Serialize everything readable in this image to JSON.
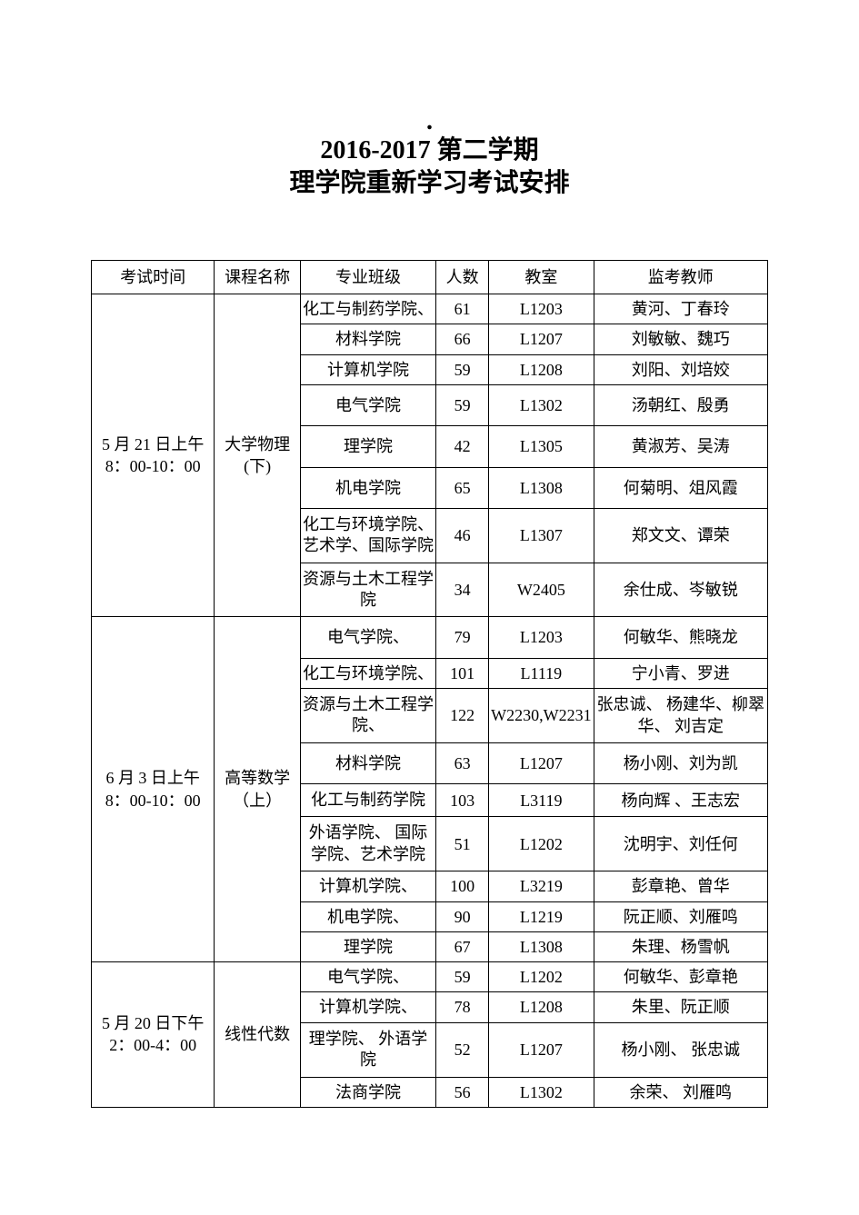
{
  "title_line1": "2016-2017 第二学期",
  "title_line2": "理学院重新学习考试安排",
  "header": {
    "time": "考试时间",
    "course": "课程名称",
    "major": "专业班级",
    "count": "人数",
    "room": "教室",
    "teacher": "监考教师"
  },
  "block1": {
    "time_l1": "5 月 21 日上午",
    "time_l2": "8：00-10：00",
    "course_l1": "大学物理",
    "course_l2": "(下)",
    "rows": [
      {
        "major": "化工与制药学院、",
        "count": "61",
        "room": "L1203",
        "teacher": "黄河、丁春玲"
      },
      {
        "major": "材料学院",
        "count": "66",
        "room": "L1207",
        "teacher": "刘敏敏、魏巧"
      },
      {
        "major": "计算机学院",
        "count": "59",
        "room": "L1208",
        "teacher": "刘阳、刘培姣"
      },
      {
        "major": "电气学院",
        "count": "59",
        "room": "L1302",
        "teacher": "汤朝红、殷勇"
      },
      {
        "major": "理学院",
        "count": "42",
        "room": "L1305",
        "teacher": "黄淑芳、吴涛"
      },
      {
        "major": "机电学院",
        "count": "65",
        "room": "L1308",
        "teacher": "何菊明、俎风霞"
      },
      {
        "major": "化工与环境学院、艺术学、国际学院",
        "count": "46",
        "room": "L1307",
        "teacher": "郑文文、谭荣"
      },
      {
        "major": "资源与土木工程学院",
        "count": "34",
        "room": "W2405",
        "teacher": "余仕成、岑敏锐"
      }
    ]
  },
  "block2": {
    "time_l1": "6 月 3 日上午",
    "time_l2": "8：00-10：00",
    "course_l1": "高等数学",
    "course_l2": "（上）",
    "rows": [
      {
        "major": "电气学院、",
        "count": "79",
        "room": "L1203",
        "teacher": "何敏华、熊晓龙"
      },
      {
        "major": "化工与环境学院、",
        "count": "101",
        "room": "L1119",
        "teacher": "宁小青、罗进"
      },
      {
        "major": "资源与土木工程学院、",
        "count": "122",
        "room": "W2230,W2231",
        "teacher": "张忠诚、 杨建华、柳翠华、 刘吉定"
      },
      {
        "major": "材料学院",
        "count": "63",
        "room": "L1207",
        "teacher": "杨小刚、刘为凯"
      },
      {
        "major": "化工与制药学院",
        "count": "103",
        "room": "L3119",
        "teacher": "杨向辉 、王志宏"
      },
      {
        "major": "外语学院、 国际学院、艺术学院",
        "count": "51",
        "room": "L1202",
        "teacher": "沈明宇、刘任何"
      },
      {
        "major": "计算机学院、",
        "count": "100",
        "room": "L3219",
        "teacher": "彭章艳、曾华"
      },
      {
        "major": "机电学院、",
        "count": "90",
        "room": "L1219",
        "teacher": "阮正顺、刘雁鸣"
      },
      {
        "major": "理学院",
        "count": "67",
        "room": "L1308",
        "teacher": "朱理、杨雪帆"
      }
    ]
  },
  "block3": {
    "time_l1": "5 月 20 日下午",
    "time_l2": "2：00-4：00",
    "course": "线性代数",
    "rows": [
      {
        "major": "电气学院、",
        "count": "59",
        "room": "L1202",
        "teacher": "何敏华、彭章艳"
      },
      {
        "major": "计算机学院、",
        "count": "78",
        "room": "L1208",
        "teacher": "朱里、阮正顺"
      },
      {
        "major": "理学院、 外语学院",
        "count": "52",
        "room": "L1207",
        "teacher": "杨小刚、 张忠诚"
      },
      {
        "major": "法商学院",
        "count": "56",
        "room": "L1302",
        "teacher": "余荣、 刘雁鸣"
      }
    ]
  }
}
